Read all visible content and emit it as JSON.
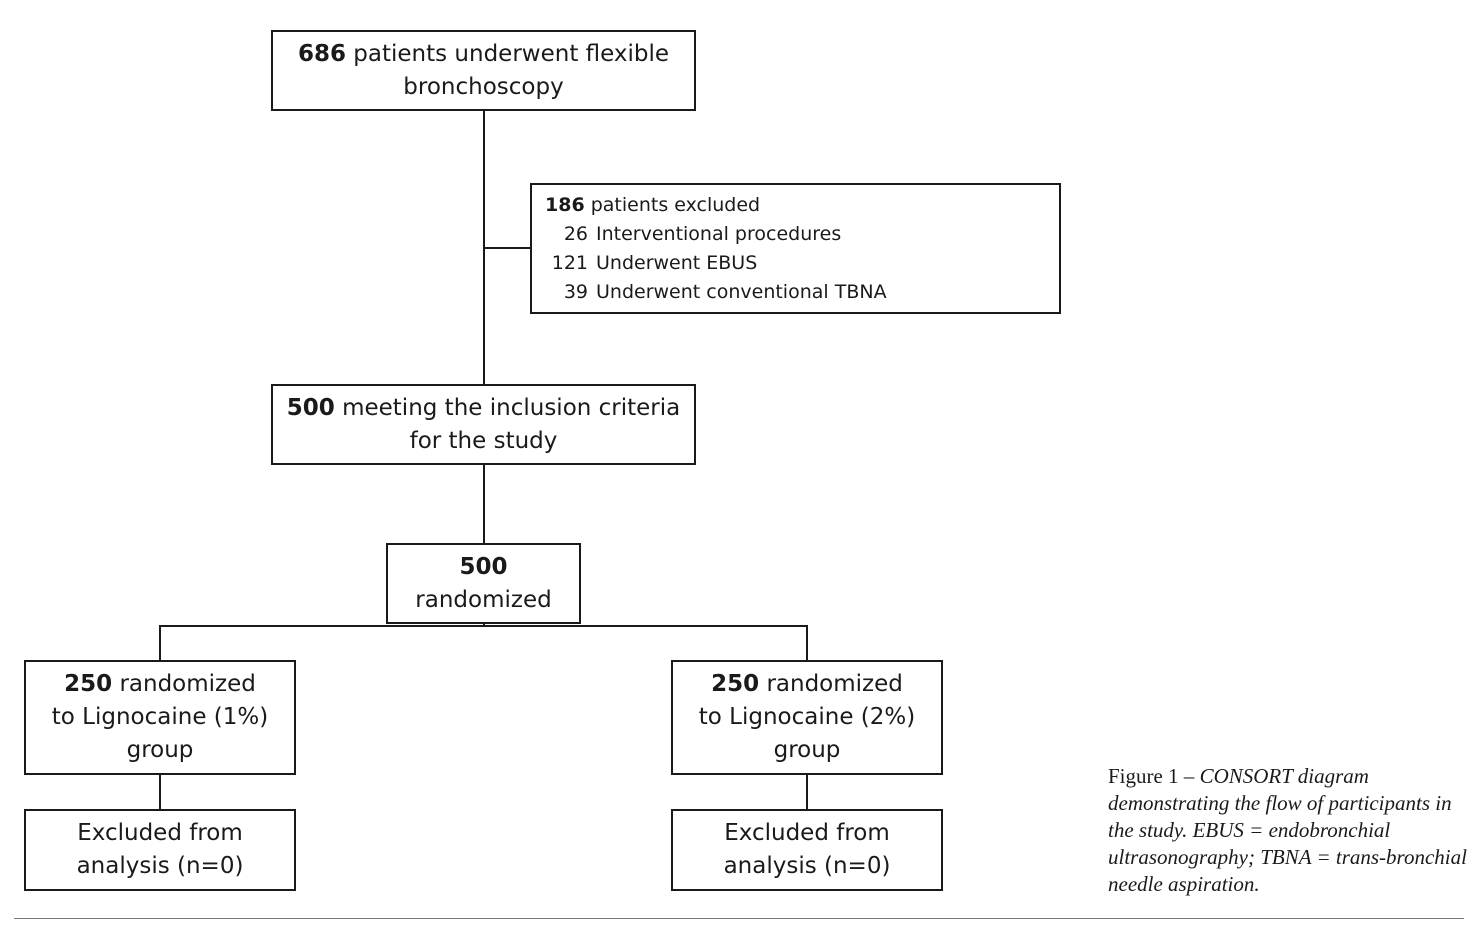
{
  "boxes": {
    "total": {
      "num": "686",
      "text": "patients underwent flexible",
      "text2": "bronchoscopy"
    },
    "excluded": {
      "num": "186",
      "text": "patients excluded",
      "items": [
        {
          "num": "26",
          "label": "Interventional procedures"
        },
        {
          "num": "121",
          "label": "Underwent EBUS"
        },
        {
          "num": "39",
          "label": "Underwent conventional TBNA"
        }
      ]
    },
    "inclusion": {
      "num": "500",
      "text": "meeting the inclusion criteria",
      "text2": "for the study"
    },
    "randomized": {
      "num": "500",
      "text": "randomized"
    },
    "group1": {
      "num": "250",
      "text": "randomized",
      "text2": "to Lignocaine (1%)",
      "text3": "group"
    },
    "group2": {
      "num": "250",
      "text": "randomized",
      "text2": "to Lignocaine (2%)",
      "text3": "group"
    },
    "excl1": {
      "text": "Excluded from",
      "text2": "analysis (n=0)"
    },
    "excl2": {
      "text": "Excluded from",
      "text2": "analysis (n=0)"
    }
  },
  "caption": {
    "prefix": "Figure 1 – ",
    "body": "CONSORT diagram demonstrating the flow of participants in the study. EBUS = endobronchial ultrasonography; TBNA = trans-bronchial needle aspiration."
  }
}
